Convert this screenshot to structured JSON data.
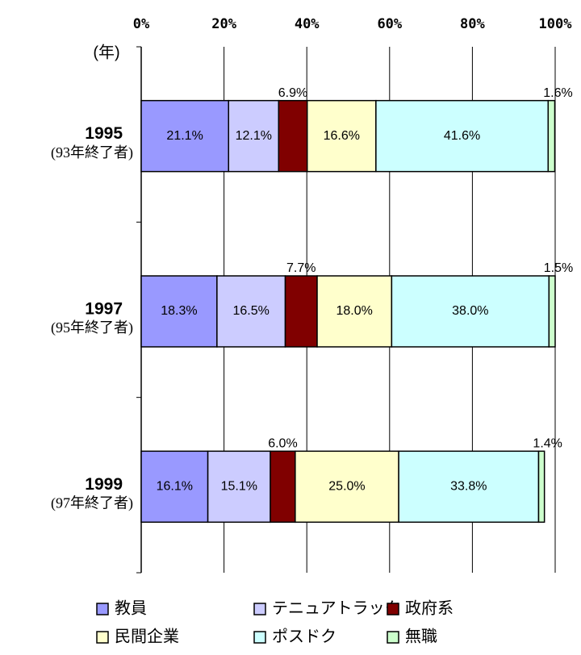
{
  "chart_data": {
    "type": "stacked-barh",
    "y_label": "(年)",
    "categories": [
      "1995",
      "1997",
      "1999"
    ],
    "category_notes": [
      "(93年終了者)",
      "(95年終了者)",
      "(97年終了者)"
    ],
    "series": [
      {
        "name": "教員",
        "color": "#9999ff",
        "values": [
          21.1,
          18.3,
          16.1
        ],
        "value_labels": [
          "21.1%",
          "18.3%",
          "16.1%"
        ]
      },
      {
        "name": "テニュアトラック",
        "color": "#ccccff",
        "values": [
          12.1,
          16.5,
          15.1
        ],
        "value_labels": [
          "12.1%",
          "16.5%",
          "15.1%"
        ]
      },
      {
        "name": "政府系",
        "color": "#800000",
        "values": [
          6.9,
          7.7,
          6.0
        ],
        "value_labels": [
          "6.9%",
          "7.7%",
          "6.0%"
        ]
      },
      {
        "name": "民間企業",
        "color": "#ffffcc",
        "values": [
          16.6,
          18.0,
          25.0
        ],
        "value_labels": [
          "16.6%",
          "18.0%",
          "25.0%"
        ]
      },
      {
        "name": "ポスドク",
        "color": "#ccffff",
        "values": [
          41.6,
          38.0,
          33.8
        ],
        "value_labels": [
          "41.6%",
          "38.0%",
          "33.8%"
        ]
      },
      {
        "name": "無職",
        "color": "#ccffcc",
        "values": [
          1.6,
          1.5,
          1.4
        ],
        "value_labels": [
          "1.6%",
          "1.5%",
          "1.4%"
        ]
      }
    ],
    "xlim": [
      0,
      100
    ],
    "xticks": [
      {
        "value": 0,
        "label": "0%"
      },
      {
        "value": 20,
        "label": "20%"
      },
      {
        "value": 40,
        "label": "40%"
      },
      {
        "value": 60,
        "label": "60%"
      },
      {
        "value": 80,
        "label": "80%"
      },
      {
        "value": 100,
        "label": "100%"
      }
    ],
    "grid": true,
    "legend": "bottom"
  }
}
